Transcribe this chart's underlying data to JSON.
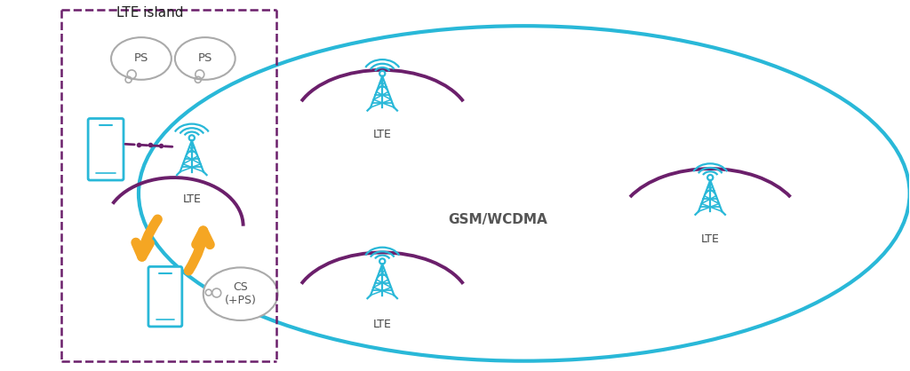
{
  "bg_color": "#ffffff",
  "cyan": "#29b8d8",
  "purple": "#6b1f6b",
  "orange": "#f5a623",
  "gray_bubble": "#aaaaaa",
  "dark_text": "#444444",
  "bold_text": "#555555",
  "title_text": "LTE island",
  "gsm_text": "GSM/WCDMA",
  "lte_text": "LTE",
  "ps_text1": "PS",
  "ps_text2": "PS",
  "cs_text": "CS\n(+PS)",
  "fig_w": 10.24,
  "fig_h": 4.18,
  "dpi": 100
}
